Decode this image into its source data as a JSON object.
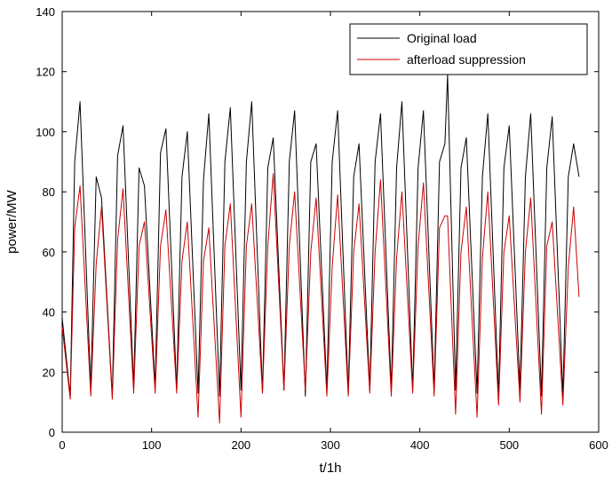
{
  "chart_data": {
    "type": "line",
    "xlabel": "t/1h",
    "ylabel": "power/MW",
    "xlim": [
      0,
      600
    ],
    "ylim": [
      0,
      140
    ],
    "xticks": [
      "0",
      "100",
      "200",
      "300",
      "400",
      "500",
      "600"
    ],
    "yticks": [
      "0",
      "20",
      "40",
      "60",
      "80",
      "100",
      "120",
      "140"
    ],
    "grid": false,
    "legend_position": "top-right",
    "series": [
      {
        "name": "Original load",
        "color": "#000000",
        "x": [
          0,
          9,
          14,
          20,
          32,
          38,
          44,
          56,
          62,
          68,
          80,
          86,
          92,
          104,
          110,
          116,
          128,
          134,
          140,
          152,
          158,
          164,
          176,
          182,
          188,
          200,
          206,
          212,
          224,
          230,
          236,
          248,
          254,
          260,
          272,
          278,
          284,
          296,
          302,
          308,
          320,
          326,
          332,
          344,
          350,
          356,
          368,
          374,
          380,
          392,
          398,
          404,
          416,
          422,
          428,
          431,
          440,
          446,
          452,
          464,
          470,
          476,
          488,
          494,
          500,
          512,
          518,
          524,
          536,
          542,
          548,
          560,
          566,
          572,
          578
        ],
        "y": [
          38,
          12,
          90,
          110,
          14,
          85,
          78,
          12,
          92,
          102,
          15,
          88,
          82,
          15,
          93,
          101,
          14,
          85,
          100,
          13,
          84,
          106,
          12,
          90,
          108,
          14,
          90,
          110,
          13,
          88,
          98,
          14,
          90,
          107,
          12,
          90,
          96,
          14,
          90,
          107,
          13,
          85,
          96,
          14,
          90,
          106,
          14,
          88,
          110,
          14,
          88,
          107,
          14,
          90,
          96,
          119,
          14,
          88,
          98,
          13,
          85,
          106,
          12,
          88,
          102,
          14,
          85,
          106,
          12,
          88,
          105,
          12,
          85,
          96,
          85
        ]
      },
      {
        "name": "afterload suppression",
        "color": "#cc0000",
        "x": [
          0,
          9,
          14,
          20,
          32,
          38,
          44,
          56,
          62,
          68,
          80,
          86,
          92,
          104,
          110,
          116,
          128,
          134,
          140,
          152,
          158,
          164,
          176,
          182,
          188,
          200,
          206,
          212,
          224,
          230,
          236,
          248,
          254,
          260,
          272,
          278,
          284,
          296,
          302,
          308,
          320,
          326,
          332,
          344,
          350,
          356,
          368,
          374,
          380,
          392,
          398,
          404,
          416,
          422,
          428,
          431,
          440,
          446,
          452,
          464,
          470,
          476,
          488,
          494,
          500,
          512,
          518,
          524,
          536,
          542,
          548,
          560,
          566,
          572,
          578
        ],
        "y": [
          35,
          11,
          68,
          82,
          12,
          56,
          75,
          11,
          64,
          81,
          13,
          62,
          70,
          13,
          62,
          74,
          13,
          57,
          70,
          5,
          57,
          68,
          3,
          62,
          76,
          5,
          62,
          76,
          13,
          62,
          86,
          14,
          62,
          80,
          14,
          60,
          78,
          12,
          55,
          79,
          12,
          60,
          76,
          13,
          60,
          84,
          12,
          58,
          80,
          13,
          62,
          83,
          12,
          68,
          72,
          72,
          6,
          60,
          75,
          5,
          58,
          80,
          9,
          60,
          72,
          10,
          60,
          78,
          6,
          62,
          70,
          9,
          55,
          75,
          45
        ]
      }
    ]
  }
}
